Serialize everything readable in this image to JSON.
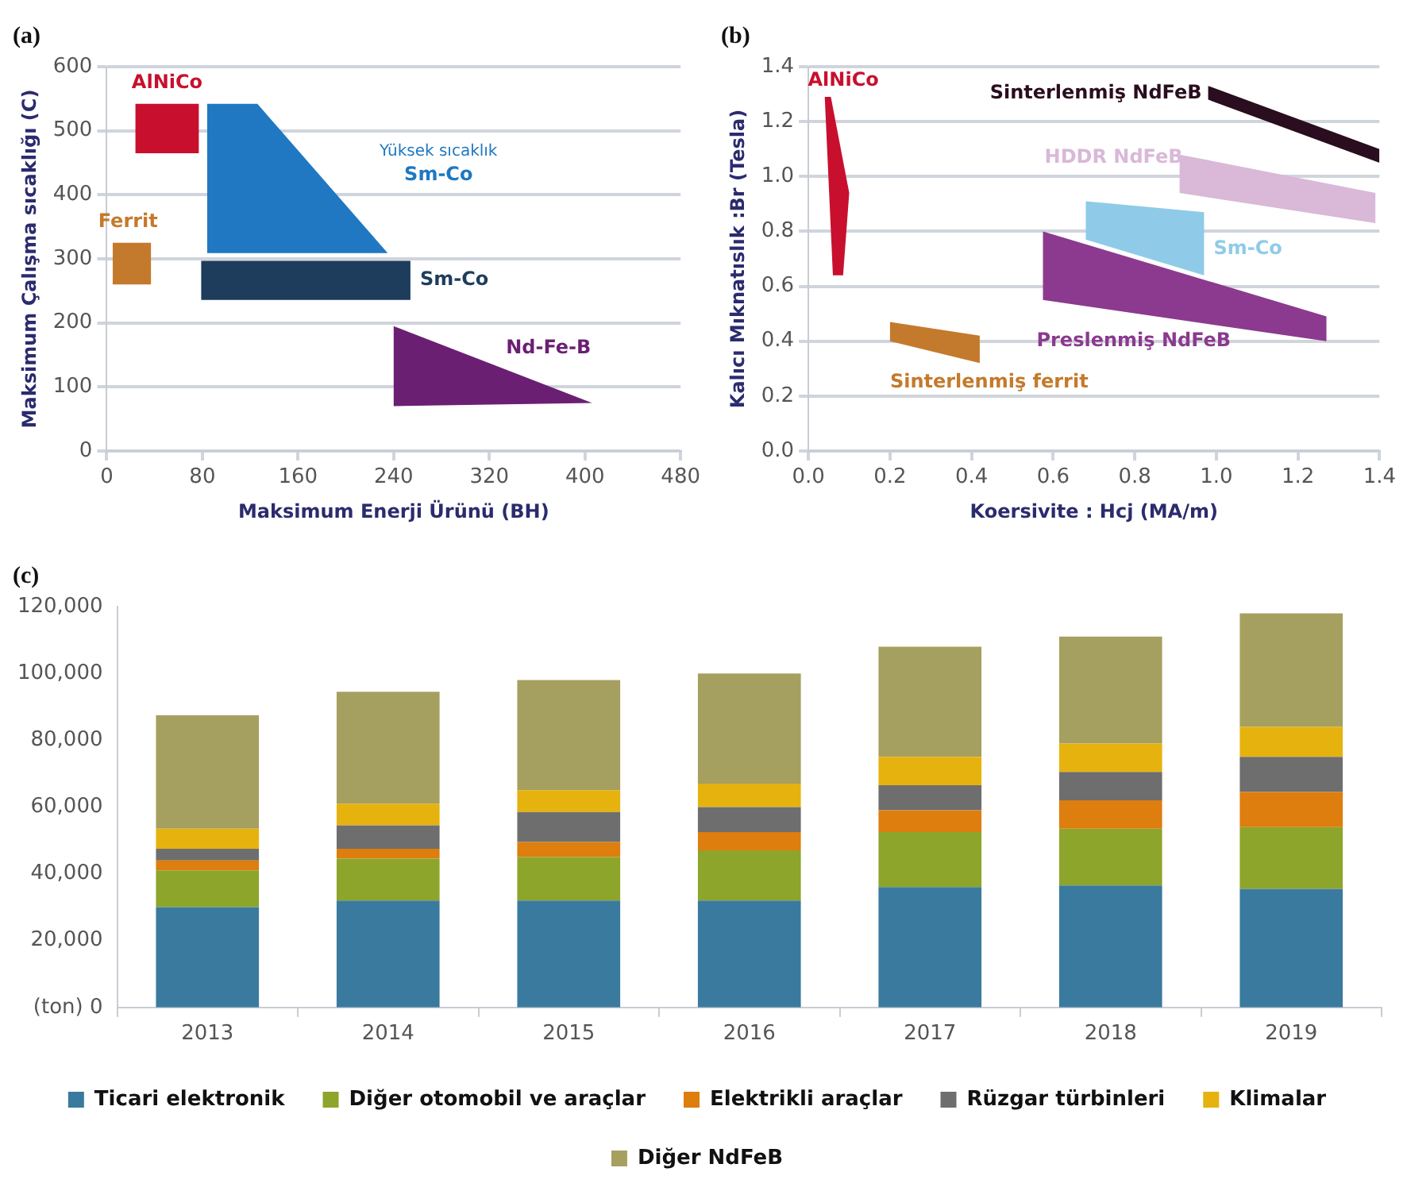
{
  "chart_data": [
    {
      "type": "area",
      "title": "(a)",
      "xlabel": "Maksimum Enerji Ürünü (BH)",
      "ylabel": "Maksimum Çalışma sıcaklığı (C)",
      "xlim": [
        0,
        480
      ],
      "xticks": [
        0,
        80,
        160,
        240,
        320,
        400,
        480
      ],
      "ylim": [
        0,
        600
      ],
      "yticks": [
        0,
        100,
        200,
        300,
        400,
        500,
        600
      ],
      "grid": "y",
      "legend": false,
      "series": [
        {
          "name": "AlNiCo",
          "color": "#c8102e",
          "x": [
            24,
            77,
            77,
            24,
            24
          ],
          "values": [
            465,
            465,
            542,
            542,
            465
          ]
        },
        {
          "name": "Ferrit",
          "color": "#c47a2c",
          "x": [
            5,
            37,
            37,
            5,
            5
          ],
          "values": [
            260,
            260,
            325,
            325,
            260
          ]
        },
        {
          "name": "Yüksek sıcaklık\nSm-Co",
          "color": "#1f78c1",
          "x": [
            84,
            126,
            235,
            84,
            84
          ],
          "values": [
            542,
            542,
            309,
            309,
            542
          ]
        },
        {
          "name": "Sm-Co",
          "color": "#1e3d5c",
          "x": [
            79,
            254,
            254,
            79,
            79
          ],
          "values": [
            236,
            236,
            297,
            297,
            236
          ]
        },
        {
          "name": "Nd-Fe-B",
          "color": "#6b1f73",
          "x": [
            240,
            406,
            240,
            240
          ],
          "values": [
            195,
            75,
            70,
            195
          ]
        }
      ]
    },
    {
      "type": "area",
      "title": "(b)",
      "xlabel": "Koersivite : Hcj (MA/m)",
      "ylabel": "Kalıcı Mıknatıslık :Br (Tesla)",
      "xlim": [
        0,
        1.4
      ],
      "xticks": [
        {
          "value": 0,
          "label": "0.0"
        },
        0.2,
        0.4,
        0.6,
        0.8,
        {
          "value": 1,
          "label": "1.0"
        },
        1.2,
        1.4
      ],
      "ylim": [
        0,
        1.4
      ],
      "yticks": [
        {
          "value": 0,
          "label": "0.0"
        },
        0.2,
        0.4,
        0.6,
        0.8,
        {
          "value": 1,
          "label": "1.0"
        },
        1.2,
        1.4
      ],
      "grid": "y",
      "legend": false,
      "series": [
        {
          "name": "AlNiCo",
          "color": "#c8102e",
          "x": [
            0.04,
            0.055,
            0.1,
            0.085,
            0.06,
            0.04
          ],
          "values": [
            1.29,
            1.29,
            0.94,
            0.64,
            0.64,
            1.29
          ]
        },
        {
          "name": "Sinterlenmiş ferrit",
          "color": "#c47a2c",
          "x": [
            0.2,
            0.42,
            0.42,
            0.2,
            0.2
          ],
          "values": [
            0.47,
            0.42,
            0.32,
            0.4,
            0.47
          ]
        },
        {
          "name": "Sinterlenmiş NdFeB",
          "color": "#2a0d1e",
          "x": [
            0.98,
            1.4,
            1.4,
            0.98,
            0.98
          ],
          "values": [
            1.33,
            1.1,
            1.05,
            1.28,
            1.33
          ]
        },
        {
          "name": "HDDR NdFeB",
          "color": "#d9b8d8",
          "x": [
            0.91,
            1.39,
            1.39,
            0.91,
            0.91
          ],
          "values": [
            1.08,
            0.94,
            0.83,
            0.94,
            1.08
          ]
        },
        {
          "name": "Sm-Co",
          "color": "#8fcbe8",
          "x": [
            0.68,
            0.97,
            0.97,
            0.68,
            0.68
          ],
          "values": [
            0.91,
            0.87,
            0.64,
            0.77,
            0.91
          ]
        },
        {
          "name": "Preslenmiş NdFeB",
          "color": "#8b3a8f",
          "x": [
            0.575,
            1.27,
            1.27,
            0.575,
            0.575
          ],
          "values": [
            0.8,
            0.49,
            0.4,
            0.55,
            0.8
          ]
        }
      ]
    },
    {
      "type": "bar",
      "title": "(c)",
      "stacked": true,
      "categories": [
        "2013",
        "2014",
        "2015",
        "2016",
        "2017",
        "2018",
        "2019"
      ],
      "ylim": [
        0,
        120000
      ],
      "yticks": [
        {
          "value": 0,
          "label": "(ton) 0"
        },
        {
          "value": 20000,
          "label": "20,000"
        },
        {
          "value": 40000,
          "label": "40,000"
        },
        {
          "value": 60000,
          "label": "60,000"
        },
        {
          "value": 80000,
          "label": "80,000"
        },
        {
          "value": 100000,
          "label": "100,000"
        },
        {
          "value": 120000,
          "label": "120,000"
        }
      ],
      "grid": false,
      "legend": "bottom",
      "series": [
        {
          "name": "Ticari elektronik",
          "color": "#3a7a9e",
          "values": [
            30000,
            32000,
            32000,
            32000,
            36000,
            36500,
            35500
          ]
        },
        {
          "name": "Diğer otomobil ve araçlar",
          "color": "#8da52a",
          "values": [
            11000,
            12500,
            13000,
            15000,
            16500,
            17000,
            18500
          ]
        },
        {
          "name": "Elektrikli araçlar",
          "color": "#dd7e0e",
          "values": [
            3000,
            3000,
            4500,
            5500,
            6500,
            8500,
            10500
          ]
        },
        {
          "name": "Rüzgar türbinleri",
          "color": "#6e6e6e",
          "values": [
            3500,
            7000,
            9000,
            7500,
            7500,
            8500,
            10500
          ]
        },
        {
          "name": "Klimalar",
          "color": "#e6b20e",
          "values": [
            6000,
            6500,
            6500,
            7000,
            8500,
            8500,
            9000
          ]
        },
        {
          "name": "Diğer NdFeB",
          "color": "#a6a060",
          "values": [
            34000,
            33500,
            33000,
            33000,
            33000,
            32000,
            34000
          ]
        }
      ]
    }
  ]
}
